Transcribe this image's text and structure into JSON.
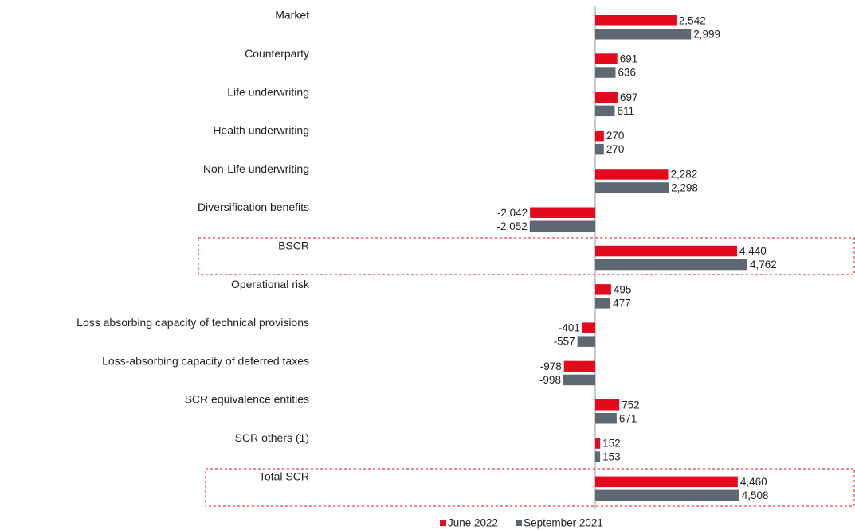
{
  "chart_data": {
    "type": "bar",
    "orientation": "horizontal",
    "categories": [
      "Market",
      "Counterparty",
      "Life underwriting",
      "Health underwriting",
      "Non-Life underwriting",
      "Diversification benefits",
      "BSCR",
      "Operational risk",
      "Loss absorbing capacity of technical provisions",
      "Loss-absorbing capacity of deferred taxes",
      "SCR equivalence entities",
      "SCR others (1)",
      "Total SCR"
    ],
    "series": [
      {
        "name": "June 2022",
        "color": "#e30a1e",
        "values": [
          2542,
          691,
          697,
          270,
          2282,
          -2042,
          4440,
          495,
          -401,
          -978,
          752,
          152,
          4460
        ],
        "value_labels": [
          "2,542",
          "691",
          "697",
          "270",
          "2,282",
          "-2,042",
          "4,440",
          "495",
          "-401",
          "-978",
          "752",
          "152",
          "4,460"
        ]
      },
      {
        "name": "September 2021",
        "color": "#5d6873",
        "values": [
          2999,
          636,
          611,
          270,
          2298,
          -2052,
          4762,
          477,
          -557,
          -998,
          671,
          153,
          4508
        ],
        "value_labels": [
          "2,999",
          "636",
          "611",
          "270",
          "2,298",
          "-2,052",
          "4,762",
          "477",
          "-557",
          "-998",
          "671",
          "153",
          "4,508"
        ]
      }
    ],
    "legend": "bottom"
  }
}
